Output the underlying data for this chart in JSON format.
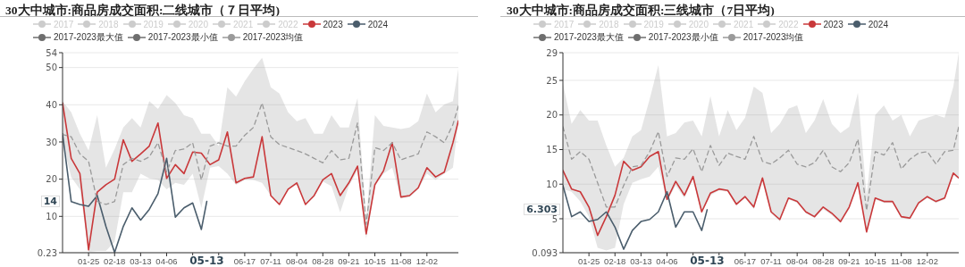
{
  "chart_data": [
    {
      "type": "line",
      "title": "30大中城市:商品房成交面积:二线城市（７日平均)",
      "legend": "top",
      "grid": "y",
      "marker": "none",
      "x": [
        "--01-01",
        "--01-09",
        "--01-17",
        "--01-25",
        "--02-02",
        "--02-10",
        "--02-18",
        "--02-26",
        "--03-05",
        "--03-13",
        "--03-21",
        "--03-29",
        "--04-06",
        "--04-14",
        "--04-22",
        "--04-30",
        "--05-08",
        "--05-16",
        "--05-24",
        "--06-01",
        "--06-09",
        "--06-17",
        "--06-25",
        "--07-03",
        "--07-11",
        "--07-19",
        "--07-27",
        "--08-04",
        "--08-12",
        "--08-20",
        "--08-28",
        "--09-05",
        "--09-13",
        "--09-21",
        "--09-29",
        "--10-07",
        "--10-15",
        "--10-23",
        "--10-31",
        "--11-08",
        "--11-16",
        "--11-24",
        "--12-02",
        "--12-10",
        "--12-18",
        "--12-26",
        "--12-31"
      ],
      "xlim": [
        "--01-01",
        "--12-31"
      ],
      "xticks": [
        {
          "value": "--01-25",
          "label": "01-25"
        },
        {
          "value": "--02-18",
          "label": "02-18"
        },
        {
          "value": "--03-13",
          "label": "03-13"
        },
        {
          "value": "--04-06",
          "label": "04-06"
        },
        {
          "value": "--04-30",
          "label": null
        },
        {
          "value": "--05-24",
          "label": null
        },
        {
          "value": "--06-17",
          "label": "06-17"
        },
        {
          "value": "--07-11",
          "label": "07-11"
        },
        {
          "value": "--08-04",
          "label": "08-04"
        },
        {
          "value": "--08-28",
          "label": "08-28"
        },
        {
          "value": "--09-21",
          "label": "09-21"
        },
        {
          "value": "--10-15",
          "label": "10-15"
        },
        {
          "value": "--11-08",
          "label": "11-08"
        },
        {
          "value": "--12-02",
          "label": "12-02"
        }
      ],
      "ylim": [
        0.23,
        54
      ],
      "yticks": [
        0.23,
        10,
        20,
        30,
        40,
        50,
        54
      ],
      "annotations": [
        "14",
        "05-13"
      ],
      "series": [
        {
          "name": "2017",
          "color": "#cccccc",
          "values": [
            null,
            null,
            null,
            null,
            null,
            null,
            null,
            null,
            null,
            null,
            null,
            null,
            null,
            null,
            null,
            null,
            null,
            null,
            null,
            null,
            null,
            null,
            null,
            null,
            null,
            null,
            null,
            null,
            null,
            null,
            null,
            null,
            null,
            null,
            null,
            null,
            null,
            null,
            null,
            null,
            null,
            null,
            null,
            null,
            null,
            null,
            null
          ]
        },
        {
          "name": "2018",
          "color": "#cccccc",
          "values": [
            null,
            null,
            null,
            null,
            null,
            null,
            null,
            null,
            null,
            null,
            null,
            null,
            null,
            null,
            null,
            null,
            null,
            null,
            null,
            null,
            null,
            null,
            null,
            null,
            null,
            null,
            null,
            null,
            null,
            null,
            null,
            null,
            null,
            null,
            null,
            null,
            null,
            null,
            null,
            null,
            null,
            null,
            null,
            null,
            null,
            null,
            null
          ]
        },
        {
          "name": "2019",
          "color": "#cccccc",
          "values": [
            null,
            null,
            null,
            null,
            null,
            null,
            null,
            null,
            null,
            null,
            null,
            null,
            null,
            null,
            null,
            null,
            null,
            null,
            null,
            null,
            null,
            null,
            null,
            null,
            null,
            null,
            null,
            null,
            null,
            null,
            null,
            null,
            null,
            null,
            null,
            null,
            null,
            null,
            null,
            null,
            null,
            null,
            null,
            null,
            null,
            null,
            null
          ]
        },
        {
          "name": "2020",
          "color": "#cccccc",
          "values": [
            null,
            null,
            null,
            null,
            null,
            null,
            null,
            null,
            null,
            null,
            null,
            null,
            null,
            null,
            null,
            null,
            null,
            null,
            null,
            null,
            null,
            null,
            null,
            null,
            null,
            null,
            null,
            null,
            null,
            null,
            null,
            null,
            null,
            null,
            null,
            null,
            null,
            null,
            null,
            null,
            null,
            null,
            null,
            null,
            null,
            null,
            null
          ]
        },
        {
          "name": "2021",
          "color": "#cccccc",
          "values": [
            null,
            null,
            null,
            null,
            null,
            null,
            null,
            null,
            null,
            null,
            null,
            null,
            null,
            null,
            null,
            null,
            null,
            null,
            null,
            null,
            null,
            null,
            null,
            null,
            null,
            null,
            null,
            null,
            null,
            null,
            null,
            null,
            null,
            null,
            null,
            null,
            null,
            null,
            null,
            null,
            null,
            null,
            null,
            null,
            null,
            null,
            null
          ]
        },
        {
          "name": "2022",
          "color": "#cccccc",
          "values": [
            null,
            null,
            null,
            null,
            null,
            null,
            null,
            null,
            null,
            null,
            null,
            null,
            null,
            null,
            null,
            null,
            null,
            null,
            null,
            null,
            null,
            null,
            null,
            null,
            null,
            null,
            null,
            null,
            null,
            null,
            null,
            null,
            null,
            null,
            null,
            null,
            null,
            null,
            null,
            null,
            null,
            null,
            null,
            null,
            null,
            null,
            null
          ]
        },
        {
          "name": "2023",
          "color": "#c9383a",
          "values": [
            40.5,
            25.6,
            21.5,
            1,
            16.5,
            18.5,
            20,
            30.6,
            24.8,
            26.8,
            28.9,
            35.1,
            20.2,
            23.9,
            21.5,
            27.3,
            27,
            23.9,
            25.2,
            32.7,
            19,
            20.2,
            20.6,
            31.4,
            15.6,
            13.2,
            17.3,
            19,
            13.2,
            15.6,
            19.8,
            21.5,
            15.6,
            19,
            23.5,
            5.3,
            18.5,
            22.3,
            29.8,
            15.2,
            15.6,
            17.7,
            23.1,
            20.6,
            21.9,
            29.8,
            35.7
          ]
        },
        {
          "name": "2024",
          "color": "#4a5d6c",
          "x": [
            "--01-01",
            "--01-09",
            "--01-17",
            "--01-25",
            "--02-02",
            "--02-10",
            "--02-18",
            "--02-26",
            "--03-05",
            "--03-13",
            "--03-21",
            "--03-29",
            "--04-06",
            "--04-14",
            "--04-22",
            "--04-30",
            "--05-08",
            "--05-13"
          ],
          "values": [
            32.2,
            14,
            13.2,
            12.7,
            15.6,
            7.3,
            0.3,
            7.3,
            12.3,
            9,
            11.9,
            16.1,
            25.6,
            9.8,
            12.3,
            13.6,
            6.5,
            14
          ]
        },
        {
          "name": "2017-2023最大值",
          "color": "#6e6e6e",
          "values": [
            null,
            null,
            null,
            null,
            null,
            null,
            null,
            null,
            null,
            null,
            null,
            null,
            null,
            null,
            null,
            null,
            null,
            null,
            null,
            null,
            null,
            null,
            null,
            null,
            null,
            null,
            null,
            null,
            null,
            null,
            null,
            null,
            null,
            null,
            null,
            null,
            null,
            null,
            null,
            null,
            null,
            null,
            null,
            null,
            null,
            null,
            null
          ]
        },
        {
          "name": "2017-2023最小值",
          "color": "#6e6e6e",
          "values": [
            null,
            null,
            null,
            null,
            null,
            null,
            null,
            null,
            null,
            null,
            null,
            null,
            null,
            null,
            null,
            null,
            null,
            null,
            null,
            null,
            null,
            null,
            null,
            null,
            null,
            null,
            null,
            null,
            null,
            null,
            null,
            null,
            null,
            null,
            null,
            null,
            null,
            null,
            null,
            null,
            null,
            null,
            null,
            null,
            null,
            null,
            null
          ]
        },
        {
          "name": "2017-2023均值",
          "color": "#9a9a9a",
          "line_style": "dashed",
          "upper": [
            41,
            38,
            32.2,
            27.7,
            37.2,
            23.1,
            28.1,
            33.9,
            36.4,
            33.9,
            41,
            38.9,
            42.6,
            40.5,
            37.2,
            36.4,
            32.2,
            32.2,
            28.9,
            44.7,
            42.2,
            46.3,
            49.7,
            52.6,
            44.7,
            43,
            38,
            35.6,
            36.4,
            32.2,
            32.2,
            37.2,
            33.9,
            33.9,
            41.8,
            9,
            37.2,
            34.3,
            33.9,
            33.5,
            33.9,
            35.6,
            43,
            38,
            40.1,
            41,
            49.7
          ],
          "lower": [
            29.8,
            20.6,
            17.3,
            0.5,
            0.7,
            0.7,
            3.2,
            16.5,
            16.5,
            21.5,
            20.2,
            19.8,
            17.3,
            19,
            18.5,
            21.5,
            12.3,
            23.1,
            23.5,
            21.5,
            18.5,
            19.8,
            19.8,
            19,
            15.6,
            13.2,
            17.3,
            18.5,
            13.2,
            15.2,
            19.4,
            18.1,
            11.1,
            18.1,
            22.3,
            4,
            18.1,
            21.5,
            23.1,
            14.8,
            15.2,
            17.3,
            21.5,
            19.8,
            21.5,
            23.1,
            35.6
          ],
          "values": [
            32,
            31.4,
            26.8,
            24.8,
            14,
            13.2,
            14,
            23.9,
            25.6,
            24.8,
            26,
            29.8,
            21.9,
            27.7,
            28.1,
            29.8,
            19.8,
            28.9,
            29.8,
            28.9,
            28.9,
            31.8,
            33.9,
            40.5,
            31.4,
            29.3,
            28.5,
            27.7,
            26.8,
            25.6,
            24.4,
            27.7,
            25.2,
            25.6,
            35.1,
            7.8,
            28.5,
            27.7,
            29.8,
            25.2,
            26,
            26.8,
            32.7,
            31.4,
            29.8,
            34.7,
            39.7
          ]
        }
      ]
    },
    {
      "type": "line",
      "title": "30大中城市:商品房成交面积:三线城市（7日平均)",
      "legend": "top",
      "grid": "y",
      "marker": "none",
      "x": [
        "--01-01",
        "--01-09",
        "--01-17",
        "--01-25",
        "--02-02",
        "--02-10",
        "--02-18",
        "--02-26",
        "--03-05",
        "--03-13",
        "--03-21",
        "--03-29",
        "--04-06",
        "--04-14",
        "--04-22",
        "--04-30",
        "--05-08",
        "--05-16",
        "--05-24",
        "--06-01",
        "--06-09",
        "--06-17",
        "--06-25",
        "--07-03",
        "--07-11",
        "--07-19",
        "--07-27",
        "--08-04",
        "--08-12",
        "--08-20",
        "--08-28",
        "--09-05",
        "--09-13",
        "--09-21",
        "--09-29",
        "--10-07",
        "--10-15",
        "--10-23",
        "--10-31",
        "--11-08",
        "--11-16",
        "--11-24",
        "--12-02",
        "--12-10",
        "--12-18",
        "--12-26",
        "--12-31"
      ],
      "xlim": [
        "--01-01",
        "--12-31"
      ],
      "xticks": [
        {
          "value": "--01-25",
          "label": "01-25"
        },
        {
          "value": "--02-18",
          "label": "02-18"
        },
        {
          "value": "--03-13",
          "label": "03-13"
        },
        {
          "value": "--04-06",
          "label": "04-06"
        },
        {
          "value": "--04-30",
          "label": null
        },
        {
          "value": "--05-24",
          "label": null
        },
        {
          "value": "--06-17",
          "label": "06-17"
        },
        {
          "value": "--07-11",
          "label": "07-11"
        },
        {
          "value": "--08-04",
          "label": "08-04"
        },
        {
          "value": "--08-28",
          "label": "08-28"
        },
        {
          "value": "--09-21",
          "label": "09-21"
        },
        {
          "value": "--10-15",
          "label": "10-15"
        },
        {
          "value": "--11-08",
          "label": "11-08"
        },
        {
          "value": "--12-02",
          "label": "12-02"
        }
      ],
      "ylim": [
        0.093,
        29
      ],
      "yticks": [
        0.093,
        5,
        10,
        15,
        20,
        25,
        29
      ],
      "annotations": [
        "6.303",
        "05-13"
      ],
      "series": [
        {
          "name": "2017",
          "color": "#cccccc",
          "values": [
            null,
            null,
            null,
            null,
            null,
            null,
            null,
            null,
            null,
            null,
            null,
            null,
            null,
            null,
            null,
            null,
            null,
            null,
            null,
            null,
            null,
            null,
            null,
            null,
            null,
            null,
            null,
            null,
            null,
            null,
            null,
            null,
            null,
            null,
            null,
            null,
            null,
            null,
            null,
            null,
            null,
            null,
            null,
            null,
            null,
            null,
            null
          ]
        },
        {
          "name": "2018",
          "color": "#cccccc",
          "values": [
            null,
            null,
            null,
            null,
            null,
            null,
            null,
            null,
            null,
            null,
            null,
            null,
            null,
            null,
            null,
            null,
            null,
            null,
            null,
            null,
            null,
            null,
            null,
            null,
            null,
            null,
            null,
            null,
            null,
            null,
            null,
            null,
            null,
            null,
            null,
            null,
            null,
            null,
            null,
            null,
            null,
            null,
            null,
            null,
            null,
            null,
            null
          ]
        },
        {
          "name": "2019",
          "color": "#cccccc",
          "values": [
            null,
            null,
            null,
            null,
            null,
            null,
            null,
            null,
            null,
            null,
            null,
            null,
            null,
            null,
            null,
            null,
            null,
            null,
            null,
            null,
            null,
            null,
            null,
            null,
            null,
            null,
            null,
            null,
            null,
            null,
            null,
            null,
            null,
            null,
            null,
            null,
            null,
            null,
            null,
            null,
            null,
            null,
            null,
            null,
            null,
            null,
            null
          ]
        },
        {
          "name": "2020",
          "color": "#cccccc",
          "values": [
            null,
            null,
            null,
            null,
            null,
            null,
            null,
            null,
            null,
            null,
            null,
            null,
            null,
            null,
            null,
            null,
            null,
            null,
            null,
            null,
            null,
            null,
            null,
            null,
            null,
            null,
            null,
            null,
            null,
            null,
            null,
            null,
            null,
            null,
            null,
            null,
            null,
            null,
            null,
            null,
            null,
            null,
            null,
            null,
            null,
            null,
            null
          ]
        },
        {
          "name": "2021",
          "color": "#cccccc",
          "values": [
            null,
            null,
            null,
            null,
            null,
            null,
            null,
            null,
            null,
            null,
            null,
            null,
            null,
            null,
            null,
            null,
            null,
            null,
            null,
            null,
            null,
            null,
            null,
            null,
            null,
            null,
            null,
            null,
            null,
            null,
            null,
            null,
            null,
            null,
            null,
            null,
            null,
            null,
            null,
            null,
            null,
            null,
            null,
            null,
            null,
            null,
            null
          ]
        },
        {
          "name": "2022",
          "color": "#cccccc",
          "values": [
            null,
            null,
            null,
            null,
            null,
            null,
            null,
            null,
            null,
            null,
            null,
            null,
            null,
            null,
            null,
            null,
            null,
            null,
            null,
            null,
            null,
            null,
            null,
            null,
            null,
            null,
            null,
            null,
            null,
            null,
            null,
            null,
            null,
            null,
            null,
            null,
            null,
            null,
            null,
            null,
            null,
            null,
            null,
            null,
            null,
            null,
            null
          ]
        },
        {
          "name": "2023",
          "color": "#c9383a",
          "values": [
            12,
            9.3,
            8.9,
            6.7,
            2.6,
            5.3,
            8.4,
            13.3,
            12,
            12.5,
            14,
            14.7,
            7.8,
            10.4,
            8.4,
            11.1,
            6,
            8.7,
            9.3,
            9.1,
            7.1,
            8.2,
            6.7,
            10.9,
            6,
            4.9,
            8,
            7.5,
            6,
            5.3,
            6.7,
            5.8,
            4.6,
            6.7,
            10.2,
            3.1,
            8,
            7.5,
            7.5,
            5.3,
            5.1,
            7.3,
            8.2,
            7.5,
            8,
            11.6,
            10.9
          ]
        },
        {
          "name": "2024",
          "color": "#4a5d6c",
          "x": [
            "--01-01",
            "--01-09",
            "--01-17",
            "--01-25",
            "--02-02",
            "--02-10",
            "--02-18",
            "--02-26",
            "--03-05",
            "--03-13",
            "--03-21",
            "--03-29",
            "--04-06",
            "--04-14",
            "--04-22",
            "--04-30",
            "--05-08",
            "--05-13"
          ],
          "values": [
            9.8,
            5.3,
            6,
            4.6,
            4.9,
            6,
            3.8,
            0.6,
            3.3,
            4.6,
            4.9,
            6,
            8.9,
            3.8,
            6,
            6,
            3.3,
            6.3
          ]
        },
        {
          "name": "2017-2023最大值",
          "color": "#6e6e6e",
          "values": [
            null,
            null,
            null,
            null,
            null,
            null,
            null,
            null,
            null,
            null,
            null,
            null,
            null,
            null,
            null,
            null,
            null,
            null,
            null,
            null,
            null,
            null,
            null,
            null,
            null,
            null,
            null,
            null,
            null,
            null,
            null,
            null,
            null,
            null,
            null,
            null,
            null,
            null,
            null,
            null,
            null,
            null,
            null,
            null,
            null,
            null,
            null
          ]
        },
        {
          "name": "2017-2023最小值",
          "color": "#6e6e6e",
          "values": [
            null,
            null,
            null,
            null,
            null,
            null,
            null,
            null,
            null,
            null,
            null,
            null,
            null,
            null,
            null,
            null,
            null,
            null,
            null,
            null,
            null,
            null,
            null,
            null,
            null,
            null,
            null,
            null,
            null,
            null,
            null,
            null,
            null,
            null,
            null,
            null,
            null,
            null,
            null,
            null,
            null,
            null,
            null,
            null,
            null,
            null,
            null
          ]
        },
        {
          "name": "2017-2023均值",
          "color": "#9a9a9a",
          "line_style": "dashed",
          "upper": [
            24.5,
            18.7,
            20.7,
            19.2,
            19.2,
            15.6,
            12.5,
            13.8,
            16.9,
            17.8,
            22.3,
            27.2,
            16.9,
            17.4,
            18.9,
            19.2,
            16.9,
            22.7,
            16.9,
            20.7,
            17.8,
            19.6,
            24.1,
            23.2,
            17.4,
            18.7,
            20.9,
            21.4,
            17.4,
            19.2,
            22.3,
            18.7,
            17.4,
            18.3,
            23.2,
            8.4,
            20,
            21.4,
            19.2,
            20,
            16.9,
            19.2,
            19.6,
            20,
            19.6,
            24.1,
            29
          ],
          "lower": [
            9.3,
            8.9,
            7.5,
            5.3,
            0.8,
            0.4,
            0.8,
            7.1,
            10.2,
            10.7,
            11.1,
            12.5,
            7.5,
            9.8,
            8,
            10.7,
            5.8,
            8.4,
            9.1,
            8.9,
            6.9,
            8,
            6.4,
            10.4,
            5.8,
            4.6,
            7.8,
            7.3,
            5.8,
            5.1,
            6.4,
            5.5,
            4.4,
            6.4,
            10,
            2.9,
            7.8,
            7.3,
            7.3,
            5.1,
            4.9,
            7.1,
            8,
            7.3,
            7.8,
            11.3,
            10.7
          ],
          "values": [
            18.3,
            13.6,
            14.7,
            13.6,
            10.2,
            6.7,
            6.7,
            9.8,
            12.5,
            12.7,
            14.7,
            17.6,
            11.1,
            13.8,
            13.6,
            15.1,
            11.8,
            15.6,
            12.7,
            14.5,
            14,
            13.6,
            16.9,
            13.3,
            12.9,
            13.8,
            14.9,
            12.9,
            12.5,
            13.1,
            14.9,
            12.5,
            11.8,
            13.1,
            16.5,
            6.2,
            14.7,
            14.2,
            16,
            12.2,
            13.6,
            14.5,
            14.7,
            12.9,
            14.7,
            14.9,
            18.3
          ]
        }
      ]
    }
  ]
}
